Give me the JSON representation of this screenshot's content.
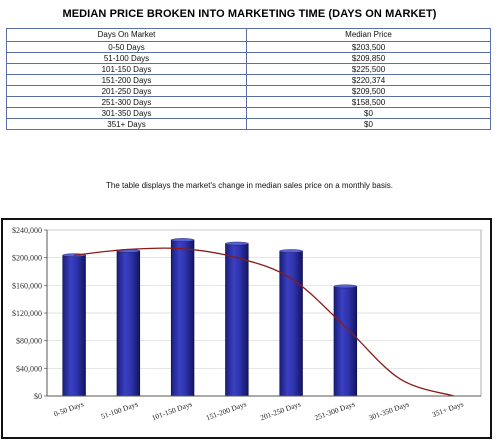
{
  "page": {
    "title": "MEDIAN PRICE BROKEN INTO MARKETING TIME (DAYS ON MARKET)",
    "caption": "The table displays the market's change in median sales price on a monthly basis."
  },
  "table": {
    "headers": [
      "Days On Market",
      "Median Price"
    ],
    "rows": [
      [
        "0-50 Days",
        "$203,500"
      ],
      [
        "51-100 Days",
        "$209,850"
      ],
      [
        "101-150 Days",
        "$225,500"
      ],
      [
        "151-200 Days",
        "$220,374"
      ],
      [
        "201-250 Days",
        "$209,500"
      ],
      [
        "251-300 Days",
        "$158,500"
      ],
      [
        "301-350 Days",
        "$0"
      ],
      [
        "351+ Days",
        "$0"
      ]
    ]
  },
  "chart_data": {
    "type": "bar",
    "categories": [
      "0-50 Days",
      "51-100 Days",
      "101-150 Days",
      "151-200 Days",
      "201-250 Days",
      "251-300 Days",
      "301-350 Days",
      "351+ Days"
    ],
    "values": [
      203500,
      209850,
      225500,
      220374,
      209500,
      158500,
      0,
      0
    ],
    "trend": [
      203500,
      212000,
      213000,
      200000,
      170000,
      100000,
      25000,
      0
    ],
    "ylim": [
      0,
      240000
    ],
    "yticks": [
      0,
      40000,
      80000,
      120000,
      160000,
      200000,
      240000
    ],
    "ytick_labels": [
      "$0",
      "$40,000",
      "$80,000",
      "$120,000",
      "$160,000",
      "$200,000",
      "$240,000"
    ],
    "title": "",
    "xlabel": "",
    "ylabel": "",
    "bar_color": "#2a2f9e",
    "trend_color": "#8b1a1a",
    "grid": true
  }
}
